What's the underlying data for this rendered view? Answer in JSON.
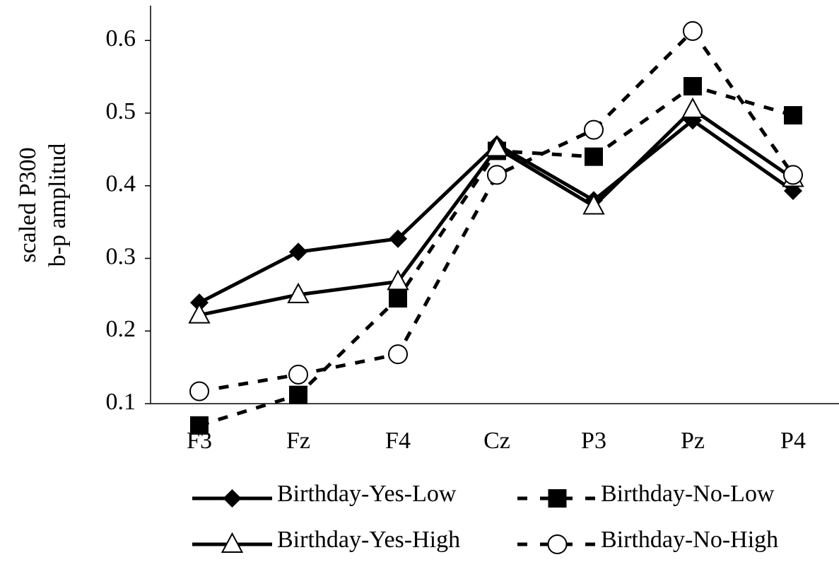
{
  "chart_data": {
    "type": "line",
    "y_label": [
      "scaled P300",
      "b-p amplitud"
    ],
    "categories": [
      "F3",
      "Fz",
      "F4",
      "Cz",
      "P3",
      "Pz",
      "P4"
    ],
    "series": [
      {
        "name": "Birthday-Yes-Low",
        "color": "#000000",
        "dashed": false,
        "marker": "diamond",
        "values": [
          0.239,
          0.309,
          0.327,
          0.457,
          0.38,
          0.49,
          0.393
        ]
      },
      {
        "name": "Birthday-No-Low",
        "color": "#000000",
        "dashed": true,
        "marker": "square",
        "values": [
          0.07,
          0.112,
          0.245,
          0.448,
          0.44,
          0.537,
          0.497
        ]
      },
      {
        "name": "Birthday-Yes-High",
        "color": "#000000",
        "dashed": false,
        "marker": "triangle",
        "values": [
          0.222,
          0.25,
          0.268,
          0.452,
          0.372,
          0.505,
          0.41
        ]
      },
      {
        "name": "Birthday-No-High",
        "color": "#000000",
        "dashed": true,
        "marker": "circle",
        "values": [
          0.117,
          0.14,
          0.168,
          0.415,
          0.477,
          0.613,
          0.415
        ]
      }
    ],
    "ylim": [
      0.1,
      0.646
    ],
    "yticks": [
      0.1,
      0.2,
      0.3,
      0.4,
      0.5,
      0.6
    ],
    "grid": false
  }
}
